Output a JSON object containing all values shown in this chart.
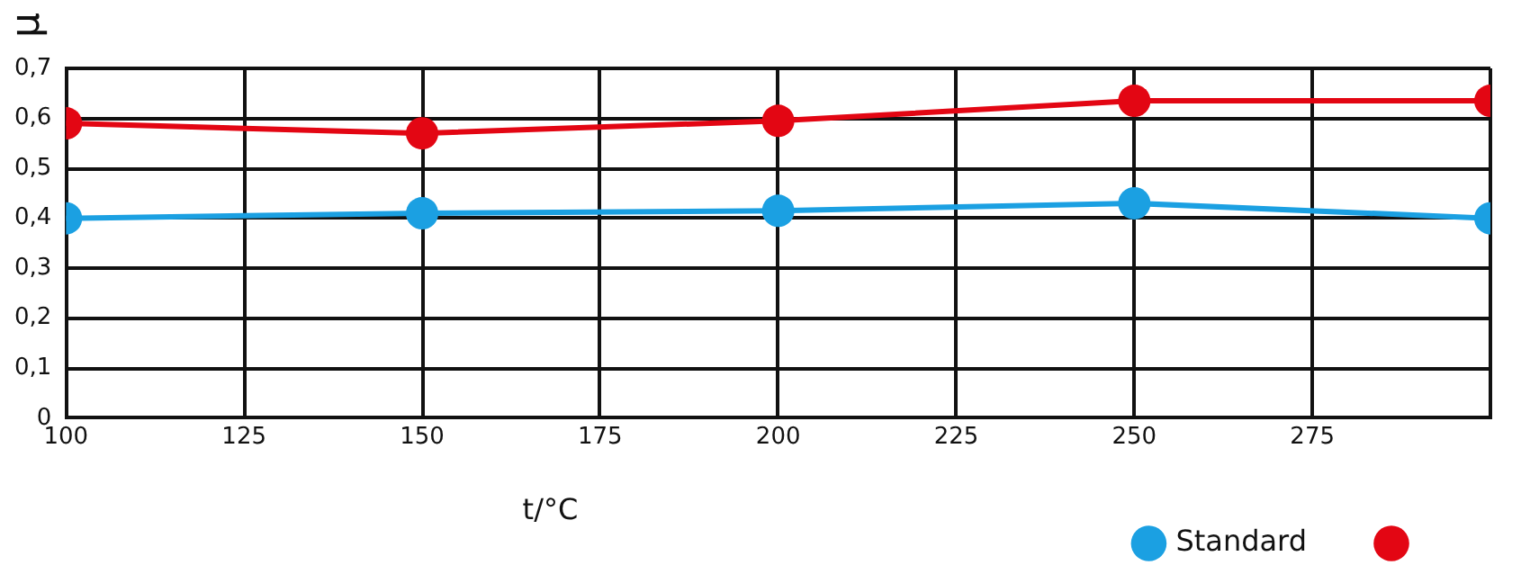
{
  "chart_data": {
    "type": "line",
    "xlabel": "t/°C",
    "ylabel": "μ",
    "x": [
      100,
      150,
      200,
      250,
      300
    ],
    "series": [
      {
        "name": "Standard",
        "color": "#1ba0e2",
        "values": [
          0.4,
          0.41,
          0.415,
          0.43,
          0.4
        ]
      },
      {
        "color": "#e30613",
        "values": [
          0.59,
          0.57,
          0.595,
          0.635,
          0.635
        ]
      }
    ],
    "xlim": [
      100,
      300
    ],
    "xticks": [
      100,
      125,
      150,
      175,
      200,
      225,
      250,
      275,
      {
        "value": 300,
        "label": null
      }
    ],
    "ylim": [
      0,
      0.7
    ],
    "yticks": [
      0,
      {
        "value": 0.1,
        "label": "0,1"
      },
      {
        "value": 0.2,
        "label": "0,2"
      },
      {
        "value": 0.3,
        "label": "0,3"
      },
      {
        "value": 0.4,
        "label": "0,4"
      },
      {
        "value": 0.5,
        "label": "0,5"
      },
      {
        "value": 0.6,
        "label": "0,6"
      },
      {
        "value": 0.7,
        "label": "0,7"
      }
    ],
    "grid": true,
    "legend": "bottom right",
    "marker": "circle",
    "line_style": "solid"
  }
}
